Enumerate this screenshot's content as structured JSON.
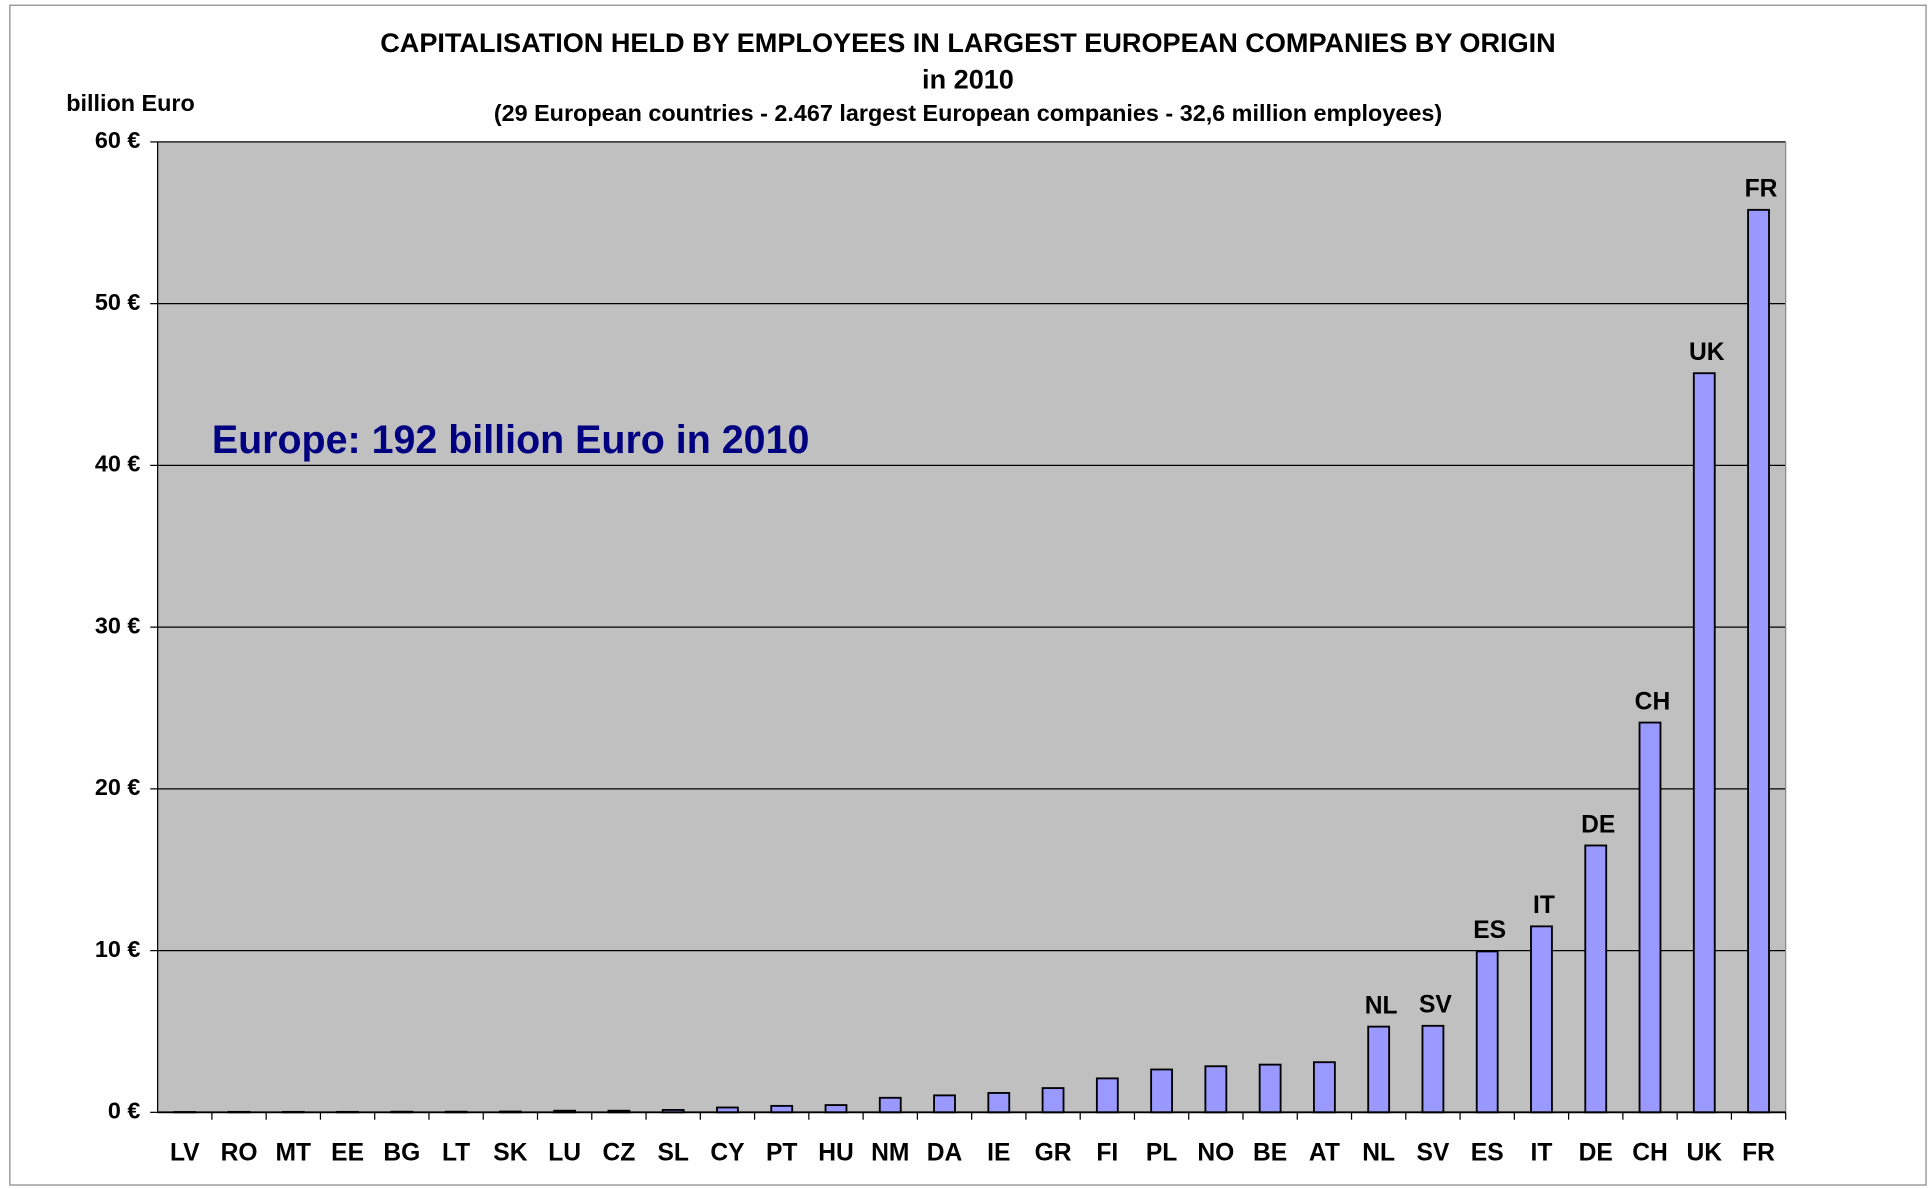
{
  "chart_data": {
    "type": "bar",
    "title": [
      "CAPITALISATION HELD BY EMPLOYEES IN LARGEST EUROPEAN COMPANIES BY ORIGIN",
      "in 2010"
    ],
    "subtitle": "(29 European countries - 2.467 largest European companies - 32,6 million employees)",
    "y_label": "billion Euro",
    "annotation": "Europe: 192 billion Euro in 2010",
    "categories": [
      "LV",
      "RO",
      "MT",
      "EE",
      "BG",
      "LT",
      "SK",
      "LU",
      "CZ",
      "SL",
      "CY",
      "PT",
      "HU",
      "NM",
      "DA",
      "IE",
      "GR",
      "FI",
      "PL",
      "NO",
      "BE",
      "AT",
      "NL",
      "SV",
      "ES",
      "IT",
      "DE",
      "CH",
      "UK",
      "FR"
    ],
    "values": [
      0.02,
      0.03,
      0.03,
      0.03,
      0.04,
      0.04,
      0.05,
      0.1,
      0.1,
      0.15,
      0.3,
      0.4,
      0.45,
      0.9,
      1.05,
      1.2,
      1.5,
      2.1,
      2.65,
      2.85,
      2.95,
      3.1,
      5.3,
      5.35,
      9.95,
      11.5,
      16.5,
      24.1,
      45.7,
      55.8
    ],
    "bar_labels": [
      null,
      null,
      null,
      null,
      null,
      null,
      null,
      null,
      null,
      null,
      null,
      null,
      null,
      null,
      null,
      null,
      null,
      null,
      null,
      null,
      null,
      null,
      "NL",
      "SV",
      "ES",
      "IT",
      "DE",
      "CH",
      "UK",
      "FR"
    ],
    "color": "#9999ff",
    "ylim": [
      0,
      60
    ],
    "yticks": [
      {
        "value": 0,
        "label": "0 €"
      },
      {
        "value": 10,
        "label": "10 €"
      },
      {
        "value": 20,
        "label": "20 €"
      },
      {
        "value": 30,
        "label": "30 €"
      },
      {
        "value": 40,
        "label": "40 €"
      },
      {
        "value": 50,
        "label": "50 €"
      },
      {
        "value": 60,
        "label": "60 €"
      }
    ],
    "grid": true
  }
}
